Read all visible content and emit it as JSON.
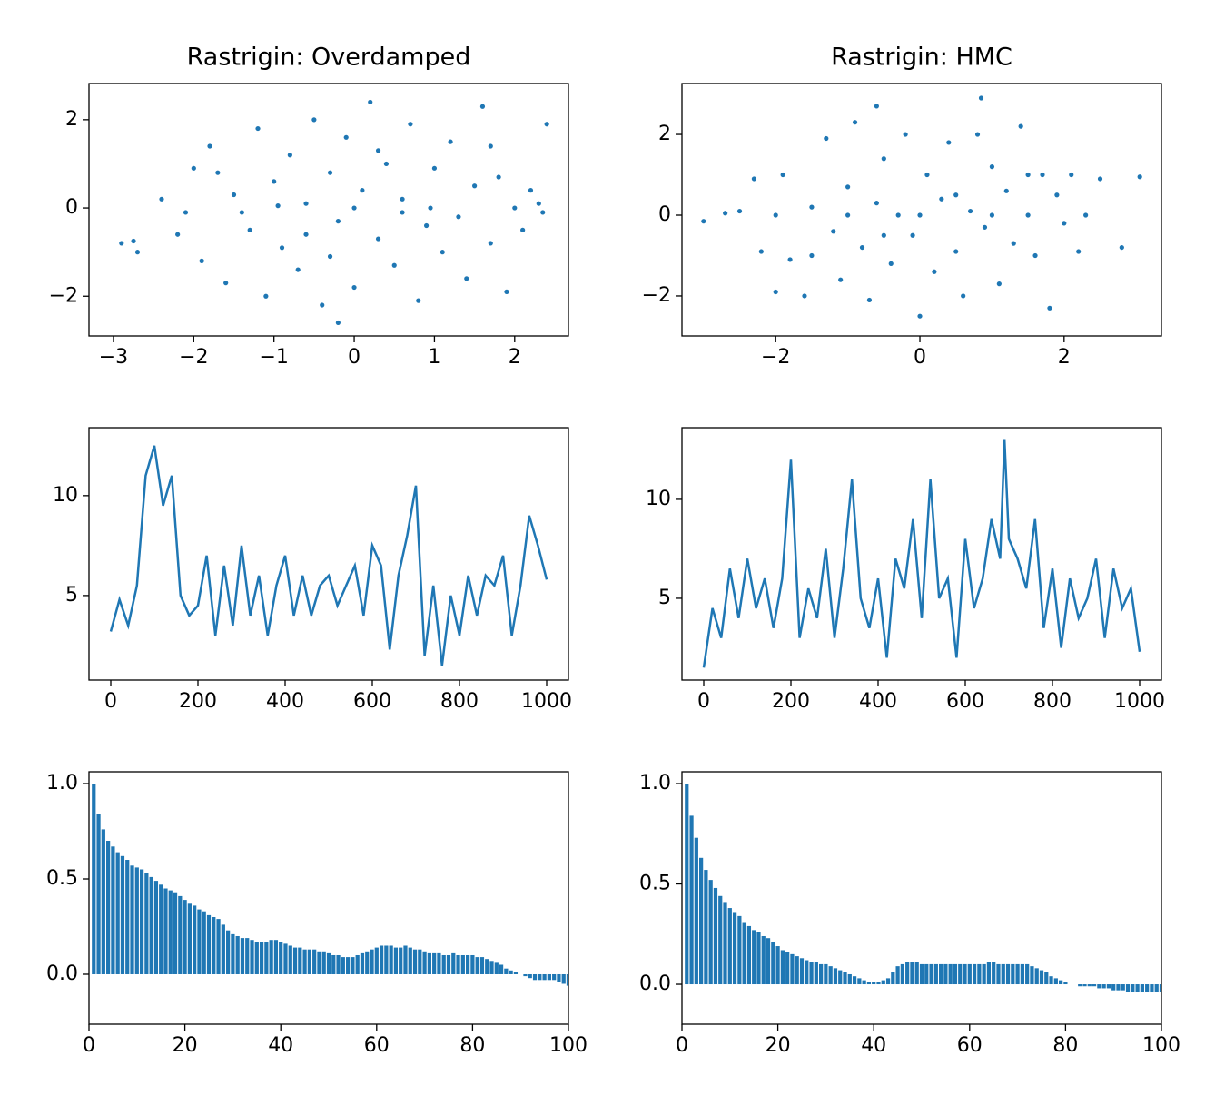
{
  "chart_data": [
    {
      "type": "scatter",
      "title": "Rastrigin: Overdamped",
      "color": "#1f77b4",
      "x": [
        -2.9,
        -2.7,
        -2.75,
        -2.4,
        -2.2,
        -2.0,
        -1.9,
        -1.8,
        -1.6,
        -1.5,
        -1.3,
        -1.2,
        -1.1,
        -1.0,
        -0.9,
        -0.8,
        -0.7,
        -0.6,
        -0.5,
        -0.4,
        -0.3,
        -0.2,
        -0.1,
        0.0,
        0.1,
        0.2,
        0.3,
        0.4,
        0.5,
        0.6,
        0.7,
        0.8,
        0.9,
        1.0,
        1.1,
        1.2,
        1.3,
        1.4,
        1.5,
        1.6,
        1.7,
        1.8,
        1.9,
        2.0,
        2.1,
        2.2,
        2.3,
        2.4,
        2.35,
        -2.1,
        -1.4,
        -0.6,
        0.0,
        0.6,
        -0.95,
        0.95,
        -0.3,
        0.3,
        1.7,
        -1.7,
        -0.2
      ],
      "y": [
        -0.8,
        -1.0,
        -0.75,
        0.2,
        -0.6,
        0.9,
        -1.2,
        1.4,
        -1.7,
        0.3,
        -0.5,
        1.8,
        -2.0,
        0.6,
        -0.9,
        1.2,
        -1.4,
        0.1,
        2.0,
        -2.2,
        0.8,
        -0.3,
        1.6,
        -1.8,
        0.4,
        2.4,
        -0.7,
        1.0,
        -1.3,
        0.2,
        1.9,
        -2.1,
        -0.4,
        0.9,
        -1.0,
        1.5,
        -0.2,
        -1.6,
        0.5,
        2.3,
        -0.8,
        0.7,
        -1.9,
        0.0,
        -0.5,
        0.4,
        0.1,
        1.9,
        -0.1,
        -0.1,
        -0.1,
        -0.6,
        0.0,
        -0.1,
        0.05,
        0.0,
        -1.1,
        1.3,
        1.4,
        0.8,
        -2.6
      ],
      "xlim": [
        -3.305,
        2.67
      ],
      "ylim": [
        -2.9,
        2.82
      ],
      "xticks": [
        {
          "value": -3,
          "label": "−3"
        },
        {
          "value": -2,
          "label": "−2"
        },
        {
          "value": -1,
          "label": "−1"
        },
        0,
        1,
        2
      ],
      "yticks": [
        {
          "value": -2,
          "label": "−2"
        },
        0,
        2
      ]
    },
    {
      "type": "scatter",
      "title": "Rastrigin: HMC",
      "color": "#1f77b4",
      "x": [
        -3.0,
        -2.7,
        -2.5,
        -2.3,
        -2.2,
        -2.0,
        -1.9,
        -1.8,
        -1.6,
        -1.5,
        -1.3,
        -1.2,
        -1.1,
        -1.0,
        -0.9,
        -0.8,
        -0.7,
        -0.6,
        -0.5,
        -0.4,
        -0.3,
        -0.2,
        -0.1,
        0.0,
        0.1,
        0.2,
        0.3,
        0.4,
        0.5,
        0.6,
        0.7,
        0.8,
        0.9,
        1.0,
        1.1,
        1.2,
        1.3,
        1.4,
        1.5,
        1.6,
        1.7,
        1.8,
        1.9,
        2.0,
        2.1,
        2.2,
        2.3,
        2.5,
        2.8,
        3.05,
        -1.0,
        0.0,
        1.0,
        0.5,
        -0.5,
        -1.5,
        1.5,
        0.85,
        -0.6,
        -2.0
      ],
      "y": [
        -0.15,
        0.05,
        0.1,
        0.9,
        -0.9,
        0.0,
        1.0,
        -1.1,
        -2.0,
        0.2,
        1.9,
        -0.4,
        -1.6,
        0.7,
        2.3,
        -0.8,
        -2.1,
        0.3,
        1.4,
        -1.2,
        0.0,
        2.0,
        -0.5,
        -2.5,
        1.0,
        -1.4,
        0.4,
        1.8,
        -0.9,
        -2.0,
        0.1,
        2.0,
        -0.3,
        1.2,
        -1.7,
        0.6,
        -0.7,
        2.2,
        0.0,
        -1.0,
        1.0,
        -2.3,
        0.5,
        -0.2,
        1.0,
        -0.9,
        0.0,
        0.9,
        -0.8,
        0.95,
        0.0,
        0.0,
        0.0,
        0.5,
        -0.5,
        -1.0,
        1.0,
        2.9,
        2.7,
        -1.9
      ],
      "xlim": [
        -3.3,
        3.35
      ],
      "ylim": [
        -2.99,
        3.26
      ],
      "xticks": [
        {
          "value": -2,
          "label": "−2"
        },
        0,
        2
      ],
      "yticks": [
        {
          "value": -2,
          "label": "−2"
        },
        0,
        2
      ]
    },
    {
      "type": "line",
      "color": "#1f77b4",
      "x": [
        0,
        20,
        40,
        60,
        80,
        100,
        120,
        140,
        160,
        180,
        200,
        220,
        240,
        260,
        280,
        300,
        320,
        340,
        360,
        380,
        400,
        420,
        440,
        460,
        480,
        500,
        520,
        540,
        560,
        580,
        600,
        620,
        640,
        660,
        680,
        700,
        720,
        740,
        760,
        780,
        800,
        820,
        840,
        860,
        880,
        900,
        920,
        940,
        960,
        980,
        1000
      ],
      "y": [
        3.2,
        4.8,
        3.5,
        5.5,
        11,
        12.5,
        9.5,
        11,
        5,
        4,
        4.5,
        7,
        3,
        6.5,
        3.5,
        7.5,
        4,
        6,
        3,
        5.5,
        7,
        4,
        6,
        4,
        5.5,
        6,
        4.5,
        5.5,
        6.5,
        4,
        7.5,
        6.5,
        2.3,
        6,
        8,
        10.5,
        2,
        5.5,
        1.5,
        5,
        3,
        6,
        4,
        6,
        5.5,
        7,
        3,
        5.5,
        9,
        7.5,
        5.8
      ],
      "xlim": [
        -50,
        1050
      ],
      "ylim": [
        0.77,
        13.4
      ],
      "xticks": [
        0,
        200,
        400,
        600,
        800,
        1000
      ],
      "yticks": [
        5,
        10
      ]
    },
    {
      "type": "line",
      "color": "#1f77b4",
      "x": [
        0,
        20,
        40,
        60,
        80,
        100,
        120,
        140,
        160,
        180,
        200,
        220,
        240,
        260,
        280,
        300,
        320,
        340,
        360,
        380,
        400,
        420,
        440,
        460,
        480,
        500,
        520,
        540,
        560,
        580,
        600,
        620,
        640,
        660,
        680,
        690,
        700,
        720,
        740,
        760,
        780,
        800,
        820,
        840,
        860,
        880,
        900,
        920,
        940,
        960,
        980,
        1000
      ],
      "y": [
        1.5,
        4.5,
        3,
        6.5,
        4,
        7,
        4.5,
        6,
        3.5,
        6,
        12,
        3,
        5.5,
        4,
        7.5,
        3,
        6.5,
        11,
        5,
        3.5,
        6,
        2,
        7,
        5.5,
        9,
        4,
        11,
        5,
        6,
        2,
        8,
        4.5,
        6,
        9,
        7,
        13,
        8,
        7,
        5.5,
        9,
        3.5,
        6.5,
        2.5,
        6,
        4,
        5,
        7,
        3,
        6.5,
        4.5,
        5.5,
        2.3
      ],
      "xlim": [
        -50,
        1050
      ],
      "ylim": [
        0.87,
        13.62
      ],
      "xticks": [
        0,
        200,
        400,
        600,
        800,
        1000
      ],
      "yticks": [
        5,
        10
      ]
    },
    {
      "type": "bar",
      "color": "#1f77b4",
      "x": [
        1,
        2,
        3,
        4,
        5,
        6,
        7,
        8,
        9,
        10,
        11,
        12,
        13,
        14,
        15,
        16,
        17,
        18,
        19,
        20,
        21,
        22,
        23,
        24,
        25,
        26,
        27,
        28,
        29,
        30,
        31,
        32,
        33,
        34,
        35,
        36,
        37,
        38,
        39,
        40,
        41,
        42,
        43,
        44,
        45,
        46,
        47,
        48,
        49,
        50,
        51,
        52,
        53,
        54,
        55,
        56,
        57,
        58,
        59,
        60,
        61,
        62,
        63,
        64,
        65,
        66,
        67,
        68,
        69,
        70,
        71,
        72,
        73,
        74,
        75,
        76,
        77,
        78,
        79,
        80,
        81,
        82,
        83,
        84,
        85,
        86,
        87,
        88,
        89,
        90,
        91,
        92,
        93,
        94,
        95,
        96,
        97,
        98,
        99,
        100
      ],
      "values": [
        1.0,
        0.84,
        0.76,
        0.7,
        0.67,
        0.64,
        0.62,
        0.6,
        0.57,
        0.56,
        0.55,
        0.53,
        0.51,
        0.49,
        0.47,
        0.45,
        0.44,
        0.43,
        0.41,
        0.39,
        0.37,
        0.36,
        0.34,
        0.33,
        0.31,
        0.3,
        0.29,
        0.26,
        0.23,
        0.21,
        0.2,
        0.19,
        0.19,
        0.18,
        0.17,
        0.17,
        0.17,
        0.18,
        0.18,
        0.17,
        0.16,
        0.15,
        0.14,
        0.14,
        0.13,
        0.13,
        0.13,
        0.12,
        0.12,
        0.11,
        0.1,
        0.1,
        0.09,
        0.09,
        0.09,
        0.1,
        0.11,
        0.12,
        0.13,
        0.14,
        0.15,
        0.15,
        0.15,
        0.14,
        0.14,
        0.15,
        0.14,
        0.13,
        0.13,
        0.12,
        0.11,
        0.11,
        0.11,
        0.1,
        0.1,
        0.11,
        0.1,
        0.1,
        0.1,
        0.1,
        0.09,
        0.09,
        0.08,
        0.07,
        0.06,
        0.05,
        0.03,
        0.02,
        0.01,
        0.0,
        -0.01,
        -0.02,
        -0.03,
        -0.03,
        -0.03,
        -0.03,
        -0.03,
        -0.04,
        -0.05,
        -0.06
      ],
      "xlim": [
        0,
        100
      ],
      "ylim": [
        -0.262,
        1.062
      ],
      "xticks": [
        0,
        20,
        40,
        60,
        80,
        100
      ],
      "yticks": [
        {
          "value": 0,
          "label": "0.0"
        },
        0.5,
        {
          "value": 1,
          "label": "1.0"
        }
      ]
    },
    {
      "type": "bar",
      "color": "#1f77b4",
      "x": [
        1,
        2,
        3,
        4,
        5,
        6,
        7,
        8,
        9,
        10,
        11,
        12,
        13,
        14,
        15,
        16,
        17,
        18,
        19,
        20,
        21,
        22,
        23,
        24,
        25,
        26,
        27,
        28,
        29,
        30,
        31,
        32,
        33,
        34,
        35,
        36,
        37,
        38,
        39,
        40,
        41,
        42,
        43,
        44,
        45,
        46,
        47,
        48,
        49,
        50,
        51,
        52,
        53,
        54,
        55,
        56,
        57,
        58,
        59,
        60,
        61,
        62,
        63,
        64,
        65,
        66,
        67,
        68,
        69,
        70,
        71,
        72,
        73,
        74,
        75,
        76,
        77,
        78,
        79,
        80,
        81,
        82,
        83,
        84,
        85,
        86,
        87,
        88,
        89,
        90,
        91,
        92,
        93,
        94,
        95,
        96,
        97,
        98,
        99,
        100
      ],
      "values": [
        1.0,
        0.84,
        0.73,
        0.63,
        0.57,
        0.52,
        0.48,
        0.44,
        0.41,
        0.38,
        0.36,
        0.34,
        0.31,
        0.29,
        0.27,
        0.26,
        0.24,
        0.23,
        0.21,
        0.19,
        0.17,
        0.16,
        0.15,
        0.14,
        0.13,
        0.12,
        0.11,
        0.11,
        0.1,
        0.1,
        0.09,
        0.08,
        0.07,
        0.06,
        0.05,
        0.04,
        0.03,
        0.02,
        0.01,
        0.01,
        0.01,
        0.02,
        0.03,
        0.06,
        0.09,
        0.1,
        0.11,
        0.11,
        0.11,
        0.1,
        0.1,
        0.1,
        0.1,
        0.1,
        0.1,
        0.1,
        0.1,
        0.1,
        0.1,
        0.1,
        0.1,
        0.1,
        0.1,
        0.11,
        0.11,
        0.1,
        0.1,
        0.1,
        0.1,
        0.1,
        0.1,
        0.1,
        0.09,
        0.08,
        0.07,
        0.06,
        0.04,
        0.03,
        0.02,
        0.01,
        0.0,
        0.0,
        -0.01,
        -0.01,
        -0.01,
        -0.01,
        -0.02,
        -0.02,
        -0.02,
        -0.03,
        -0.03,
        -0.03,
        -0.04,
        -0.04,
        -0.04,
        -0.04,
        -0.04,
        -0.04,
        -0.04,
        -0.04
      ],
      "xlim": [
        0,
        100
      ],
      "ylim": [
        -0.199,
        1.059
      ],
      "xticks": [
        0,
        20,
        40,
        60,
        80,
        100
      ],
      "yticks": [
        {
          "value": 0,
          "label": "0.0"
        },
        0.5,
        {
          "value": 1,
          "label": "1.0"
        }
      ]
    }
  ]
}
